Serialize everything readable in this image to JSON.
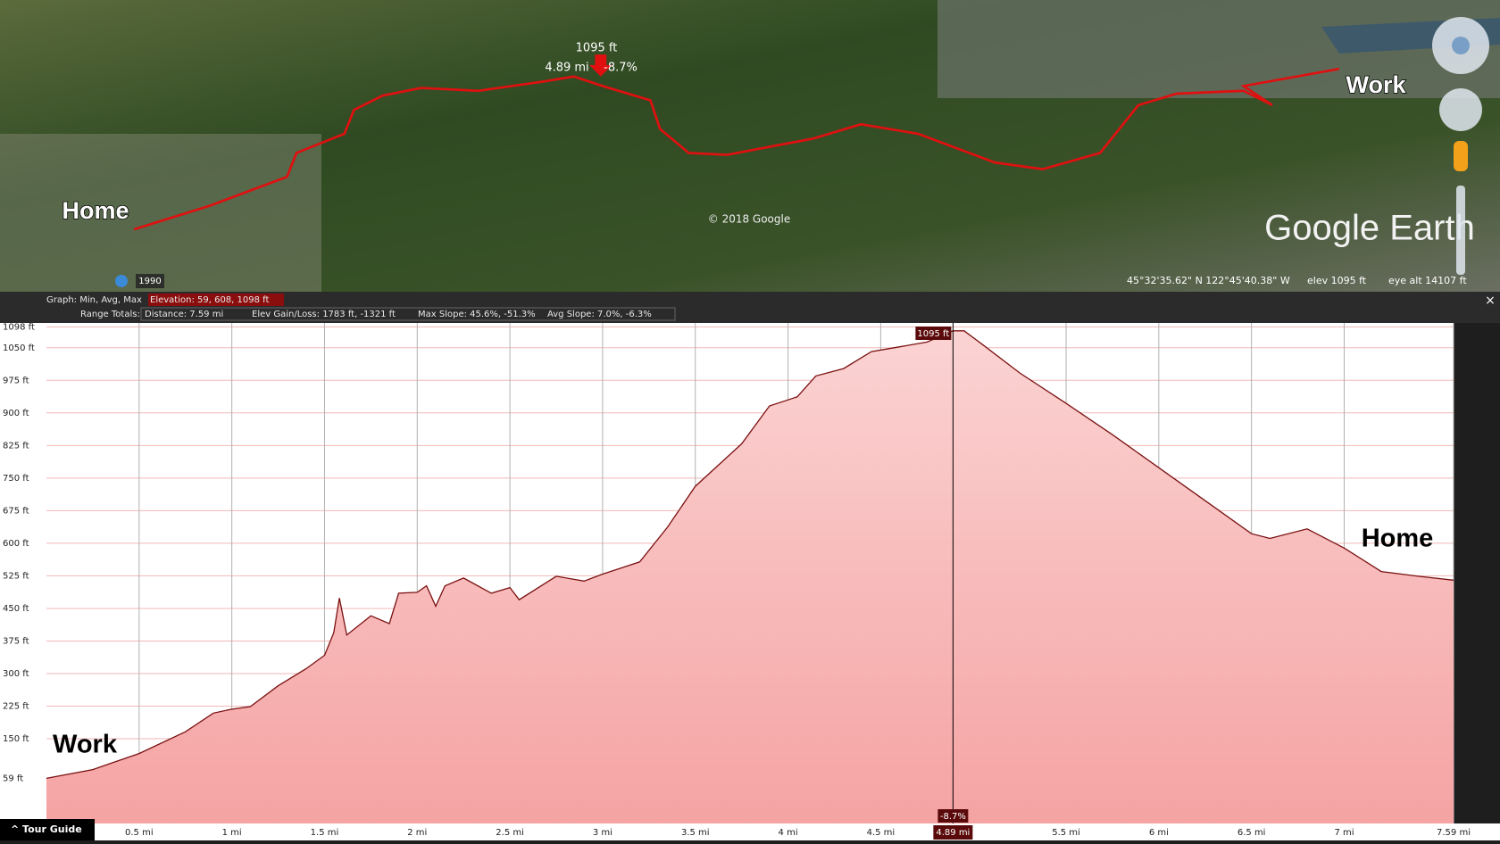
{
  "map": {
    "cursor_elevation": "1095 ft",
    "cursor_distance": "4.89 mi",
    "cursor_slope": "-8.7%",
    "home_label": "Home",
    "work_label": "Work",
    "copyright": "© 2018 Google",
    "brand": "Google Earth",
    "historical_year": "1990",
    "status": {
      "coordinates": "45°32'35.62\" N  122°45'40.38\" W",
      "elevation": "elev  1095 ft",
      "eye_altitude": "eye alt  14107 ft"
    }
  },
  "graph_bar": {
    "graph_label": "Graph:  Min, Avg, Max",
    "elevation": "Elevation:  59, 608, 1098 ft",
    "range_label": "Range Totals:",
    "distance": "Distance:  7.59 mi",
    "elev_gain_loss": "Elev Gain/Loss:  1783 ft, -1321 ft",
    "max_slope": "Max Slope:  45.6%, -51.3%",
    "avg_slope": "Avg Slope:  7.0%, -6.3%"
  },
  "chart_data": {
    "type": "area",
    "color": "#7a1010",
    "fill": "#f8b9b9",
    "grid": true,
    "x": [
      0,
      0.25,
      0.5,
      0.75,
      0.9,
      1.0,
      1.1,
      1.25,
      1.4,
      1.5,
      1.55,
      1.58,
      1.62,
      1.75,
      1.85,
      1.9,
      2.0,
      2.05,
      2.1,
      2.15,
      2.25,
      2.4,
      2.5,
      2.55,
      2.75,
      2.9,
      3.0,
      3.2,
      3.35,
      3.5,
      3.75,
      3.9,
      4.05,
      4.15,
      4.3,
      4.45,
      4.6,
      4.75,
      4.89,
      4.95,
      5.05,
      5.25,
      5.5,
      5.75,
      6.0,
      6.25,
      6.5,
      6.6,
      6.8,
      7.0,
      7.2,
      7.4,
      7.59
    ],
    "values": [
      59,
      79,
      116,
      166,
      209,
      218,
      224,
      272,
      311,
      342,
      394,
      474,
      389,
      433,
      415,
      485,
      487,
      502,
      455,
      502,
      520,
      485,
      498,
      470,
      524,
      513,
      529,
      557,
      637,
      731,
      829,
      916,
      937,
      985,
      1002,
      1041,
      1052,
      1063,
      1089,
      1089,
      1057,
      992,
      922,
      850,
      774,
      698,
      622,
      611,
      633,
      589,
      535,
      524,
      515
    ],
    "xlim": [
      0,
      7.59
    ],
    "ylim": [
      -45,
      1107
    ],
    "xticks": [
      {
        "value": 0.5,
        "label": "0.5 mi"
      },
      {
        "value": 1,
        "label": "1 mi"
      },
      {
        "value": 1.5,
        "label": "1.5 mi"
      },
      {
        "value": 2,
        "label": "2 mi"
      },
      {
        "value": 2.5,
        "label": "2.5 mi"
      },
      {
        "value": 3,
        "label": "3 mi"
      },
      {
        "value": 3.5,
        "label": "3.5 mi"
      },
      {
        "value": 4,
        "label": "4 mi"
      },
      {
        "value": 4.5,
        "label": "4.5 mi"
      },
      {
        "value": 5.5,
        "label": "5.5 mi"
      },
      {
        "value": 6,
        "label": "6 mi"
      },
      {
        "value": 6.5,
        "label": "6.5 mi"
      },
      {
        "value": 7,
        "label": "7 mi"
      },
      {
        "value": 7.59,
        "label": "7.59 mi"
      }
    ],
    "yticks": [
      {
        "value": 59,
        "label": "59 ft"
      },
      {
        "value": 150,
        "label": "150 ft"
      },
      {
        "value": 225,
        "label": "225 ft"
      },
      {
        "value": 300,
        "label": "300 ft"
      },
      {
        "value": 375,
        "label": "375 ft"
      },
      {
        "value": 450,
        "label": "450 ft"
      },
      {
        "value": 525,
        "label": "525 ft"
      },
      {
        "value": 600,
        "label": "600 ft"
      },
      {
        "value": 675,
        "label": "675 ft"
      },
      {
        "value": 750,
        "label": "750 ft"
      },
      {
        "value": 825,
        "label": "825 ft"
      },
      {
        "value": 900,
        "label": "900 ft"
      },
      {
        "value": 975,
        "label": "975 ft"
      },
      {
        "value": 1050,
        "label": "1050 ft"
      },
      {
        "value": 1098,
        "label": "1098 ft"
      }
    ],
    "cursor": {
      "x": 4.89,
      "x_label": "4.89 mi",
      "elevation_label": "1095 ft",
      "slope_label": "-8.7%"
    },
    "annotations": [
      "Work",
      "Home"
    ]
  },
  "footer": {
    "tour_guide": "Tour Guide"
  }
}
